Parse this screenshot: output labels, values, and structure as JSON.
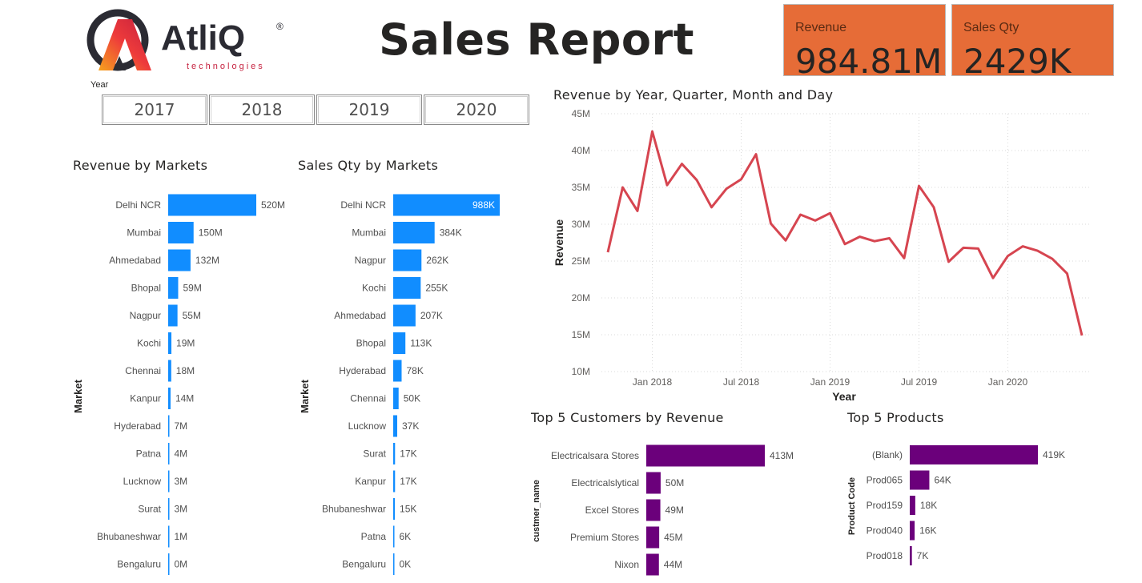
{
  "header": {
    "logo_text": "AtliQ",
    "logo_sub": "technologies",
    "logo_mark": "®",
    "title": "Sales Report"
  },
  "kpis": [
    {
      "label": "Revenue",
      "value": "984.81M"
    },
    {
      "label": "Sales Qty",
      "value": "2429K"
    }
  ],
  "colors": {
    "kpi_bg": "#e66c37",
    "bar_blue": "#118dff",
    "bar_purple": "#6b007b",
    "line_red": "#d64550"
  },
  "year_slicer": {
    "label": "Year",
    "options": [
      "2017",
      "2018",
      "2019",
      "2020"
    ]
  },
  "chart_data": [
    {
      "type": "bar",
      "title": "Revenue by Markets",
      "ylabel": "Market",
      "categories": [
        "Delhi NCR",
        "Mumbai",
        "Ahmedabad",
        "Bhopal",
        "Nagpur",
        "Kochi",
        "Chennai",
        "Kanpur",
        "Hyderabad",
        "Patna",
        "Lucknow",
        "Surat",
        "Bhubaneshwar",
        "Bengaluru"
      ],
      "values": [
        520,
        150,
        132,
        59,
        55,
        19,
        18,
        14,
        7,
        4,
        3,
        3,
        1,
        0
      ],
      "labels": [
        "520M",
        "150M",
        "132M",
        "59M",
        "55M",
        "19M",
        "18M",
        "14M",
        "7M",
        "4M",
        "3M",
        "3M",
        "1M",
        "0M"
      ],
      "unit": "M"
    },
    {
      "type": "bar",
      "title": "Sales Qty by Markets",
      "ylabel": "Market",
      "categories": [
        "Delhi NCR",
        "Mumbai",
        "Nagpur",
        "Kochi",
        "Ahmedabad",
        "Bhopal",
        "Hyderabad",
        "Chennai",
        "Lucknow",
        "Surat",
        "Kanpur",
        "Bhubaneshwar",
        "Patna",
        "Bengaluru"
      ],
      "values": [
        988,
        384,
        262,
        255,
        207,
        113,
        78,
        50,
        37,
        17,
        17,
        15,
        6,
        0
      ],
      "labels": [
        "988K",
        "384K",
        "262K",
        "255K",
        "207K",
        "113K",
        "78K",
        "50K",
        "37K",
        "17K",
        "17K",
        "15K",
        "6K",
        "0K"
      ],
      "unit": "K"
    },
    {
      "type": "line",
      "title": "Revenue by Year, Quarter, Month and Day",
      "xlabel": "Year",
      "ylabel": "Revenue",
      "ylim": [
        10,
        45
      ],
      "yticks": [
        "10M",
        "15M",
        "20M",
        "25M",
        "30M",
        "35M",
        "40M",
        "45M"
      ],
      "xticks": [
        "Jan 2018",
        "Jul 2018",
        "Jan 2019",
        "Jul 2019",
        "Jan 2020"
      ],
      "x": [
        "2017-10",
        "2017-11",
        "2017-12",
        "2018-01",
        "2018-02",
        "2018-03",
        "2018-04",
        "2018-05",
        "2018-06",
        "2018-07",
        "2018-08",
        "2018-09",
        "2018-10",
        "2018-11",
        "2018-12",
        "2019-01",
        "2019-02",
        "2019-03",
        "2019-04",
        "2019-05",
        "2019-06",
        "2019-07",
        "2019-08",
        "2019-09",
        "2019-10",
        "2019-11",
        "2019-12",
        "2020-01",
        "2020-02",
        "2020-03",
        "2020-04",
        "2020-05",
        "2020-06"
      ],
      "values": [
        26.2,
        35.0,
        31.8,
        42.6,
        35.3,
        38.2,
        36.0,
        32.3,
        34.8,
        36.1,
        39.5,
        30.1,
        27.8,
        31.3,
        30.5,
        31.5,
        27.3,
        28.3,
        27.7,
        28.1,
        25.4,
        35.2,
        32.3,
        24.9,
        26.8,
        26.7,
        22.7,
        25.7,
        27.0,
        26.4,
        25.3,
        23.3,
        14.9
      ]
    },
    {
      "type": "bar",
      "title": "Top 5 Customers by Revenue",
      "ylabel": "custmer_name",
      "categories": [
        "Electricalsara Stores",
        "Electricalslytical",
        "Excel Stores",
        "Premium Stores",
        "Nixon"
      ],
      "values": [
        413,
        50,
        49,
        45,
        44
      ],
      "labels": [
        "413M",
        "50M",
        "49M",
        "45M",
        "44M"
      ],
      "unit": "M"
    },
    {
      "type": "bar",
      "title": "Top 5 Products",
      "ylabel": "Product Code",
      "categories": [
        "(Blank)",
        "Prod065",
        "Prod159",
        "Prod040",
        "Prod018"
      ],
      "values": [
        419,
        64,
        18,
        16,
        7
      ],
      "labels": [
        "419K",
        "64K",
        "18K",
        "16K",
        "7K"
      ],
      "unit": "K"
    }
  ]
}
